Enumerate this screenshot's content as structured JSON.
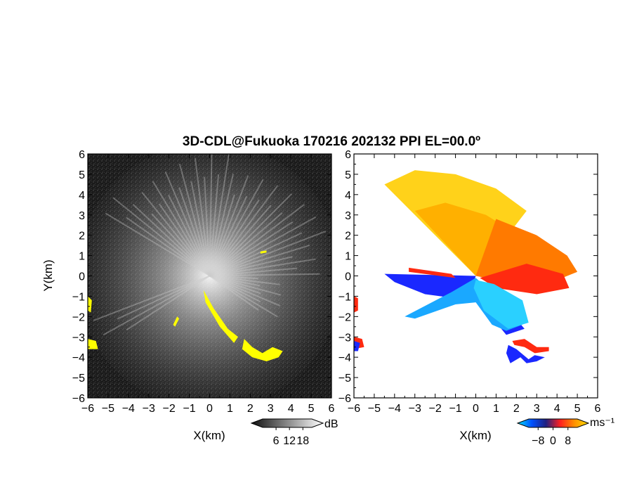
{
  "title": "3D-CDL@Fukuoka 170216 202132 PPI EL=00.0º",
  "chart_data": [
    {
      "type": "heatmap",
      "panel": "reflectivity",
      "xlabel": "X(km)",
      "ylabel": "Y(km)",
      "xlim": [
        -6,
        6
      ],
      "ylim": [
        -6,
        6
      ],
      "ticks": [
        -6,
        -5,
        -4,
        -3,
        -2,
        -1,
        0,
        1,
        2,
        3,
        4,
        5,
        6
      ],
      "colorbar": {
        "ticks": [
          6,
          12,
          18
        ],
        "unit": "dB",
        "colors": [
          "#101010",
          "#ffffff"
        ]
      },
      "highlight_color": "#ffff00",
      "highlight_regions": [
        {
          "points": [
            [
              -0.3,
              -0.7
            ],
            [
              0.2,
              -1.6
            ],
            [
              0.9,
              -2.6
            ],
            [
              1.4,
              -3.0
            ],
            [
              1.2,
              -3.3
            ],
            [
              0.5,
              -2.5
            ],
            [
              -0.2,
              -1.3
            ]
          ]
        },
        {
          "points": [
            [
              1.7,
              -3.1
            ],
            [
              2.1,
              -3.5
            ],
            [
              2.6,
              -3.8
            ],
            [
              3.1,
              -3.5
            ],
            [
              3.6,
              -3.7
            ],
            [
              3.4,
              -4.0
            ],
            [
              2.8,
              -4.2
            ],
            [
              2.1,
              -4.0
            ],
            [
              1.6,
              -3.6
            ]
          ]
        },
        {
          "points": [
            [
              -6.0,
              -1.0
            ],
            [
              -5.8,
              -1.2
            ],
            [
              -5.85,
              -1.8
            ],
            [
              -6.0,
              -1.7
            ]
          ]
        },
        {
          "points": [
            [
              -6.0,
              -3.1
            ],
            [
              -5.6,
              -3.2
            ],
            [
              -5.5,
              -3.6
            ],
            [
              -6.0,
              -3.6
            ]
          ]
        },
        {
          "points": [
            [
              -1.6,
              -2.0
            ],
            [
              -1.5,
              -2.1
            ],
            [
              -1.7,
              -2.5
            ],
            [
              -1.8,
              -2.4
            ]
          ]
        },
        {
          "points": [
            [
              2.5,
              1.2
            ],
            [
              2.8,
              1.25
            ],
            [
              2.8,
              1.15
            ],
            [
              2.5,
              1.1
            ]
          ]
        }
      ]
    },
    {
      "type": "heatmap",
      "panel": "velocity",
      "xlabel": "X(km)",
      "xlim": [
        -6,
        6
      ],
      "ylim": [
        -6,
        6
      ],
      "ticks": [
        -6,
        -5,
        -4,
        -3,
        -2,
        -1,
        0,
        1,
        2,
        3,
        4,
        5,
        6
      ],
      "colorbar": {
        "ticks": [
          -8,
          0,
          8
        ],
        "unit": "ms⁻¹",
        "colors": [
          "#00e0ff",
          "#0050ff",
          "#202080",
          "#ff2020",
          "#ff9000",
          "#ffe000"
        ]
      },
      "regions": [
        {
          "color": "#ffd21a",
          "points": [
            [
              0,
              0
            ],
            [
              -4.5,
              4.5
            ],
            [
              -3.0,
              5.2
            ],
            [
              -1.0,
              5.0
            ],
            [
              1.0,
              4.3
            ],
            [
              2.5,
              3.2
            ],
            [
              0.8,
              1.0
            ]
          ]
        },
        {
          "color": "#ffb000",
          "points": [
            [
              0,
              0
            ],
            [
              -3.0,
              3.2
            ],
            [
              -1.5,
              3.6
            ],
            [
              0.5,
              3.0
            ],
            [
              1.8,
              2.2
            ],
            [
              0.5,
              0.6
            ]
          ]
        },
        {
          "color": "#ff7a00",
          "points": [
            [
              0,
              0
            ],
            [
              1.0,
              2.8
            ],
            [
              3.0,
              2.0
            ],
            [
              4.5,
              1.0
            ],
            [
              5.0,
              0.2
            ],
            [
              3.5,
              -0.4
            ],
            [
              1.5,
              -0.3
            ]
          ]
        },
        {
          "color": "#ff2a10",
          "points": [
            [
              0.2,
              -0.1
            ],
            [
              2.5,
              0.6
            ],
            [
              4.3,
              0.1
            ],
            [
              4.6,
              -0.6
            ],
            [
              3.0,
              -0.9
            ],
            [
              1.0,
              -0.6
            ]
          ]
        },
        {
          "color": "#1a28ff",
          "points": [
            [
              0,
              0
            ],
            [
              -4.5,
              0.1
            ],
            [
              -4.0,
              -0.3
            ],
            [
              -2.5,
              -0.9
            ],
            [
              -1.0,
              -1.1
            ],
            [
              0,
              -1.0
            ],
            [
              1.2,
              -1.2
            ],
            [
              2.4,
              -2.6
            ],
            [
              1.5,
              -2.9
            ],
            [
              0.6,
              -1.8
            ],
            [
              -0.2,
              -0.6
            ]
          ]
        },
        {
          "color": "#1aa8ff",
          "points": [
            [
              0,
              -0.1
            ],
            [
              -1.2,
              -0.8
            ],
            [
              -3.5,
              -2.0
            ],
            [
              -3.0,
              -2.1
            ],
            [
              -1.0,
              -1.4
            ],
            [
              0.0,
              -1.3
            ],
            [
              0.8,
              -2.4
            ],
            [
              1.5,
              -2.7
            ],
            [
              2.3,
              -2.4
            ],
            [
              1.0,
              -1.0
            ]
          ]
        },
        {
          "color": "#2ad0ff",
          "points": [
            [
              0.0,
              -0.2
            ],
            [
              0.9,
              -0.4
            ],
            [
              2.3,
              -1.2
            ],
            [
              2.6,
              -2.3
            ],
            [
              1.6,
              -2.6
            ],
            [
              0.4,
              -1.7
            ],
            [
              -0.1,
              -0.6
            ]
          ]
        },
        {
          "color": "#ff2a10",
          "points": [
            [
              1.8,
              -3.2
            ],
            [
              2.4,
              -3.1
            ],
            [
              3.0,
              -3.5
            ],
            [
              3.6,
              -3.5
            ],
            [
              3.6,
              -3.7
            ],
            [
              2.9,
              -3.8
            ],
            [
              2.4,
              -3.5
            ],
            [
              1.9,
              -3.4
            ]
          ]
        },
        {
          "color": "#1a28ff",
          "points": [
            [
              1.6,
              -3.4
            ],
            [
              2.0,
              -3.6
            ],
            [
              2.6,
              -4.1
            ],
            [
              2.9,
              -3.9
            ],
            [
              3.4,
              -4.0
            ],
            [
              3.0,
              -4.2
            ],
            [
              2.5,
              -4.3
            ],
            [
              2.2,
              -4.0
            ],
            [
              1.7,
              -4.3
            ],
            [
              1.5,
              -3.8
            ]
          ]
        },
        {
          "color": "#ff2a10",
          "points": [
            [
              -6.0,
              -1.0
            ],
            [
              -5.8,
              -1.1
            ],
            [
              -5.8,
              -1.7
            ],
            [
              -6.0,
              -1.8
            ]
          ]
        },
        {
          "color": "#ff2a10",
          "points": [
            [
              -6.0,
              -3.0
            ],
            [
              -5.6,
              -3.1
            ],
            [
              -5.5,
              -3.5
            ],
            [
              -6.0,
              -3.6
            ]
          ]
        },
        {
          "color": "#1a28ff",
          "points": [
            [
              -6.0,
              -3.2
            ],
            [
              -5.7,
              -3.3
            ],
            [
              -5.8,
              -3.7
            ],
            [
              -6.0,
              -3.7
            ]
          ]
        },
        {
          "color": "#ff2a10",
          "points": [
            [
              -3.3,
              0.4
            ],
            [
              -1.2,
              0.1
            ],
            [
              -1.0,
              -0.1
            ],
            [
              -3.3,
              0.2
            ]
          ]
        }
      ]
    }
  ]
}
